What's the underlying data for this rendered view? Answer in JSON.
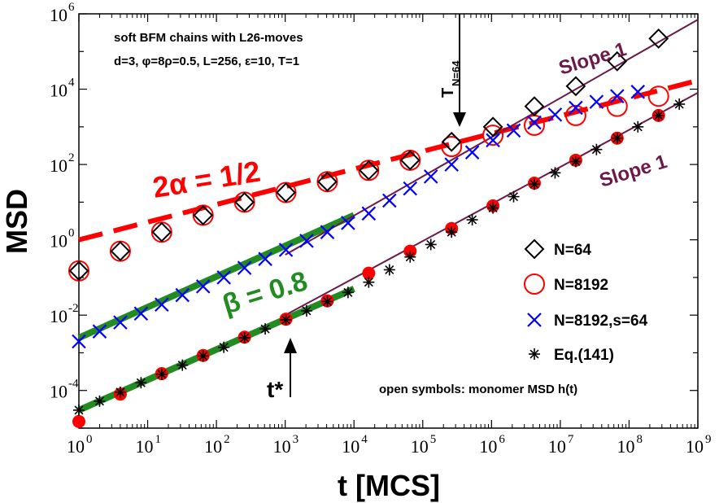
{
  "chart_data": {
    "type": "scatter",
    "xscale": "log",
    "yscale": "log",
    "xlim": [
      1,
      1000000000.0
    ],
    "ylim": [
      1e-05,
      1000000.0
    ],
    "xlabel": "t [MCS]",
    "ylabel": "MSD",
    "x_ticks": [
      {
        "value": 1,
        "mant": "10",
        "exp": "0"
      },
      {
        "value": 10,
        "mant": "10",
        "exp": "1"
      },
      {
        "value": 100,
        "mant": "10",
        "exp": "2"
      },
      {
        "value": 1000,
        "mant": "10",
        "exp": "3"
      },
      {
        "value": 10000,
        "mant": "10",
        "exp": "4"
      },
      {
        "value": 100000,
        "mant": "10",
        "exp": "5"
      },
      {
        "value": 1000000,
        "mant": "10",
        "exp": "6"
      },
      {
        "value": 10000000,
        "mant": "10",
        "exp": "7"
      },
      {
        "value": 100000000,
        "mant": "10",
        "exp": "8"
      },
      {
        "value": 1000000000,
        "mant": "10",
        "exp": "9"
      }
    ],
    "y_ticks": [
      {
        "value": 0.0001,
        "mant": "10",
        "exp": "-4"
      },
      {
        "value": 0.01,
        "mant": "10",
        "exp": "-2"
      },
      {
        "value": 1,
        "mant": "10",
        "exp": "0"
      },
      {
        "value": 100,
        "mant": "10",
        "exp": "2"
      },
      {
        "value": 10000,
        "mant": "10",
        "exp": "4"
      },
      {
        "value": 1000000,
        "mant": "10",
        "exp": "6"
      }
    ],
    "info_lines": [
      "soft BFM chains with L26-moves",
      "d=3, φ=8ρ=0.5, L=256, ε=10, T=1"
    ],
    "footnote": "open symbols: monomer MSD h(t)",
    "series": [
      {
        "name": "N=64",
        "marker": "diamond-open",
        "color": "#000000",
        "points": [
          [
            1,
            0.15
          ],
          [
            4,
            0.5
          ],
          [
            16,
            1.6
          ],
          [
            64,
            4.5
          ],
          [
            256,
            10
          ],
          [
            1024,
            18
          ],
          [
            4096,
            35
          ],
          [
            16384,
            70
          ],
          [
            65536,
            130
          ],
          [
            262144,
            400
          ],
          [
            1048576,
            1000
          ],
          [
            4194304,
            3500
          ],
          [
            16777216,
            12000
          ],
          [
            67108864,
            55000
          ],
          [
            268435456,
            220000
          ]
        ]
      },
      {
        "name": "N=8192",
        "marker": "circle-open",
        "color": "#ff0000",
        "points": [
          [
            1,
            0.15
          ],
          [
            4,
            0.5
          ],
          [
            16,
            1.6
          ],
          [
            64,
            4.5
          ],
          [
            256,
            10
          ],
          [
            1024,
            18
          ],
          [
            4096,
            35
          ],
          [
            16384,
            70
          ],
          [
            65536,
            130
          ],
          [
            262144,
            300
          ],
          [
            1048576,
            600
          ],
          [
            4194304,
            1100
          ],
          [
            16777216,
            2000
          ],
          [
            67108864,
            3500
          ],
          [
            268435456,
            6500
          ]
        ]
      },
      {
        "name": "N=8192,s=64",
        "marker": "cross",
        "color": "#0000ff",
        "points": [
          [
            1,
            0.002
          ],
          [
            2,
            0.0037
          ],
          [
            4,
            0.0064
          ],
          [
            8,
            0.011
          ],
          [
            16,
            0.019
          ],
          [
            32,
            0.034
          ],
          [
            64,
            0.058
          ],
          [
            128,
            0.1
          ],
          [
            256,
            0.18
          ],
          [
            512,
            0.31
          ],
          [
            1024,
            0.54
          ],
          [
            2048,
            0.94
          ],
          [
            4096,
            1.6
          ],
          [
            8192,
            2.8
          ],
          [
            16384,
            5
          ],
          [
            32768,
            11
          ],
          [
            65536,
            23
          ],
          [
            131072,
            48
          ],
          [
            262144,
            100
          ],
          [
            524288,
            210
          ],
          [
            1048576,
            440
          ],
          [
            2097152,
            800
          ],
          [
            4194304,
            1300
          ],
          [
            8388608,
            2100
          ],
          [
            16777216,
            3200
          ],
          [
            33554432,
            4600
          ],
          [
            67108864,
            6500
          ],
          [
            134217728,
            8500
          ]
        ]
      },
      {
        "name": "Eq.(141)",
        "marker": "asterisk",
        "color": "#000000",
        "points": [
          [
            1,
            3e-05
          ],
          [
            2,
            5.2e-05
          ],
          [
            4,
            9e-05
          ],
          [
            8,
            0.00016
          ],
          [
            16,
            0.00027
          ],
          [
            32,
            0.00047
          ],
          [
            64,
            0.00082
          ],
          [
            128,
            0.0014
          ],
          [
            256,
            0.0025
          ],
          [
            512,
            0.0043
          ],
          [
            1024,
            0.0075
          ],
          [
            2048,
            0.013
          ],
          [
            4096,
            0.023
          ],
          [
            8192,
            0.04
          ],
          [
            16384,
            0.075
          ],
          [
            32768,
            0.16
          ],
          [
            65536,
            0.35
          ],
          [
            131072,
            0.75
          ],
          [
            262144,
            1.6
          ],
          [
            524288,
            3.4
          ],
          [
            1048576,
            7
          ],
          [
            2097152,
            14
          ],
          [
            4194304,
            30
          ],
          [
            8388608,
            60
          ],
          [
            16777216,
            120
          ],
          [
            33554432,
            250
          ],
          [
            67108864,
            500
          ],
          [
            134217728,
            1000
          ],
          [
            268435456,
            2000
          ],
          [
            536870912,
            4000
          ]
        ]
      },
      {
        "name": "Eq.(141) filled",
        "marker": "circle-filled",
        "color": "#ff0000",
        "in_legend": false,
        "points": [
          [
            1,
            1.5e-05
          ],
          [
            4,
            8e-05
          ],
          [
            16,
            0.00028
          ],
          [
            64,
            0.00085
          ],
          [
            256,
            0.0026
          ],
          [
            1024,
            0.0078
          ],
          [
            4096,
            0.024
          ],
          [
            16384,
            0.13
          ],
          [
            65536,
            0.5
          ],
          [
            262144,
            2
          ],
          [
            1048576,
            8
          ],
          [
            4194304,
            32
          ],
          [
            16777216,
            130
          ],
          [
            67108864,
            500
          ],
          [
            268435456,
            2000
          ]
        ]
      }
    ],
    "fit_lines": [
      {
        "name": "2α = 1/2",
        "color": "#ff0000",
        "style": "dashed",
        "x": [
          1,
          1000000000.0
        ],
        "y": [
          1,
          17000
        ]
      },
      {
        "name": "β = 0.8 (upper)",
        "color": "#228b22",
        "style": "solid",
        "x": [
          1,
          10000
        ],
        "y": [
          0.0025,
          4.5
        ]
      },
      {
        "name": "β = 0.8 (lower)",
        "color": "#228b22",
        "style": "solid",
        "x": [
          1,
          10000
        ],
        "y": [
          3e-05,
          0.05
        ]
      },
      {
        "name": "Slope 1 (upper)",
        "color": "#6b1a4a",
        "style": "solid",
        "x": [
          1000,
          1000000000.0
        ],
        "y": [
          0.4,
          700000
        ]
      },
      {
        "name": "Slope 1 (lower)",
        "color": "#6b1a4a",
        "style": "solid",
        "x": [
          1000,
          1000000000.0
        ],
        "y": [
          0.01,
          8000
        ]
      }
    ],
    "annotations": [
      {
        "id": "alpha",
        "text": "2α = 1/2",
        "color": "#ff0000"
      },
      {
        "id": "beta",
        "text": "β = 0.8",
        "color": "#228b22"
      },
      {
        "id": "slope_upper",
        "text": "Slope 1",
        "color": "#6b1a4a"
      },
      {
        "id": "slope_lower",
        "text": "Slope 1",
        "color": "#6b1a4a"
      },
      {
        "id": "tstar",
        "text": "t*",
        "color": "#000000",
        "x": 1000
      },
      {
        "id": "tn",
        "text": "T",
        "sub": "N=64",
        "color": "#000000",
        "x": 300000
      }
    ]
  }
}
